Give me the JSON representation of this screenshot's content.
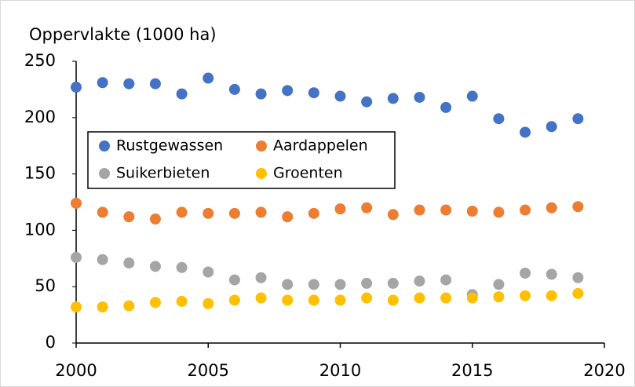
{
  "chart_data": {
    "type": "scatter",
    "y_axis_label": "Oppervlakte (1000 ha)",
    "x": [
      2000,
      2001,
      2002,
      2003,
      2004,
      2005,
      2006,
      2007,
      2008,
      2009,
      2010,
      2011,
      2012,
      2013,
      2014,
      2015,
      2016,
      2017,
      2018,
      2019
    ],
    "series": [
      {
        "name": "Rustgewassen",
        "color": "#4472c4",
        "values": [
          227,
          231,
          230,
          230,
          221,
          235,
          225,
          221,
          224,
          222,
          219,
          214,
          217,
          218,
          209,
          219,
          199,
          187,
          192,
          199
        ]
      },
      {
        "name": "Aardappelen",
        "color": "#ed7d31",
        "values": [
          124,
          116,
          112,
          110,
          116,
          115,
          115,
          116,
          112,
          115,
          119,
          120,
          114,
          118,
          118,
          117,
          116,
          118,
          120,
          121
        ]
      },
      {
        "name": "Suikerbieten",
        "color": "#a5a5a5",
        "values": [
          76,
          74,
          71,
          68,
          67,
          63,
          56,
          58,
          52,
          52,
          52,
          53,
          53,
          55,
          56,
          43,
          52,
          62,
          61,
          58
        ]
      },
      {
        "name": "Groenten",
        "color": "#ffc000",
        "values": [
          32,
          32,
          33,
          36,
          37,
          35,
          38,
          40,
          38,
          38,
          38,
          40,
          38,
          40,
          40,
          40,
          41,
          42,
          42,
          44
        ]
      }
    ],
    "xlim": [
      2000,
      2020
    ],
    "xticks": [
      2000,
      2005,
      2010,
      2015,
      2020
    ],
    "ylim": [
      0,
      250
    ],
    "yticks": [
      0,
      50,
      100,
      150,
      200,
      250
    ],
    "grid": false
  }
}
